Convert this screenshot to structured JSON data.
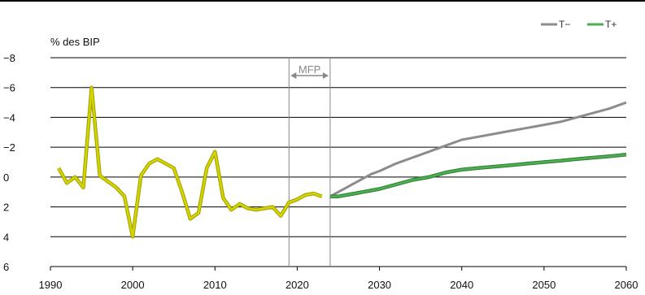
{
  "chart_data": {
    "type": "line",
    "ylabel": "% des BIP",
    "y_inverted": true,
    "ylim": [
      -8,
      6
    ],
    "yticks": [
      -8,
      -6,
      -4,
      -2,
      0,
      2,
      4,
      6
    ],
    "ytick_labels": [
      "−8",
      "−6",
      "−4",
      "−2",
      "0",
      "2",
      "4",
      "6"
    ],
    "xlim": [
      1990,
      2060
    ],
    "xticks": [
      1990,
      2000,
      2010,
      2020,
      2030,
      2040,
      2050,
      2060
    ],
    "grid": "horizontal",
    "legend_position": "top-right",
    "annotation": {
      "label": "MFP",
      "x_from": 2019,
      "x_to": 2024
    },
    "historical": {
      "color": "#d4d400",
      "outline": "#a0a000",
      "x": [
        1991,
        1992,
        1993,
        1994,
        1995,
        1996,
        1997,
        1998,
        1999,
        2000,
        2001,
        2002,
        2003,
        2004,
        2005,
        2006,
        2007,
        2008,
        2009,
        2010,
        2011,
        2012,
        2013,
        2014,
        2015,
        2016,
        2017,
        2018,
        2019,
        2020,
        2021,
        2022,
        2023
      ],
      "values": [
        -0.6,
        0.4,
        0.0,
        0.7,
        -6.0,
        -0.1,
        0.3,
        0.7,
        1.3,
        4.0,
        -0.1,
        -0.9,
        -1.2,
        -0.9,
        -0.6,
        1.0,
        2.8,
        2.4,
        -0.6,
        -1.7,
        1.4,
        2.2,
        1.8,
        2.1,
        2.2,
        2.1,
        2.0,
        2.6,
        1.7,
        1.5,
        1.2,
        1.1,
        1.3
      ]
    },
    "series": [
      {
        "name": "T−",
        "color": "#8c8c8c",
        "x": [
          2024,
          2025,
          2026,
          2027,
          2028,
          2029,
          2030,
          2032,
          2034,
          2036,
          2038,
          2040,
          2042,
          2044,
          2046,
          2048,
          2050,
          2052,
          2054,
          2056,
          2058,
          2060
        ],
        "values": [
          1.3,
          1.0,
          0.7,
          0.4,
          0.1,
          -0.2,
          -0.4,
          -0.9,
          -1.3,
          -1.7,
          -2.1,
          -2.5,
          -2.7,
          -2.9,
          -3.1,
          -3.3,
          -3.5,
          -3.7,
          -4.0,
          -4.3,
          -4.6,
          -5.0
        ]
      },
      {
        "name": "T+",
        "color": "#4caf50",
        "outline": "#2e7d32",
        "x": [
          2024,
          2025,
          2026,
          2027,
          2028,
          2029,
          2030,
          2032,
          2034,
          2036,
          2038,
          2040,
          2042,
          2044,
          2046,
          2048,
          2050,
          2052,
          2054,
          2056,
          2058,
          2060
        ],
        "values": [
          1.3,
          1.3,
          1.2,
          1.1,
          1.0,
          0.9,
          0.8,
          0.5,
          0.2,
          0.0,
          -0.3,
          -0.5,
          -0.6,
          -0.7,
          -0.8,
          -0.9,
          -1.0,
          -1.1,
          -1.2,
          -1.3,
          -1.4,
          -1.5
        ]
      }
    ]
  }
}
